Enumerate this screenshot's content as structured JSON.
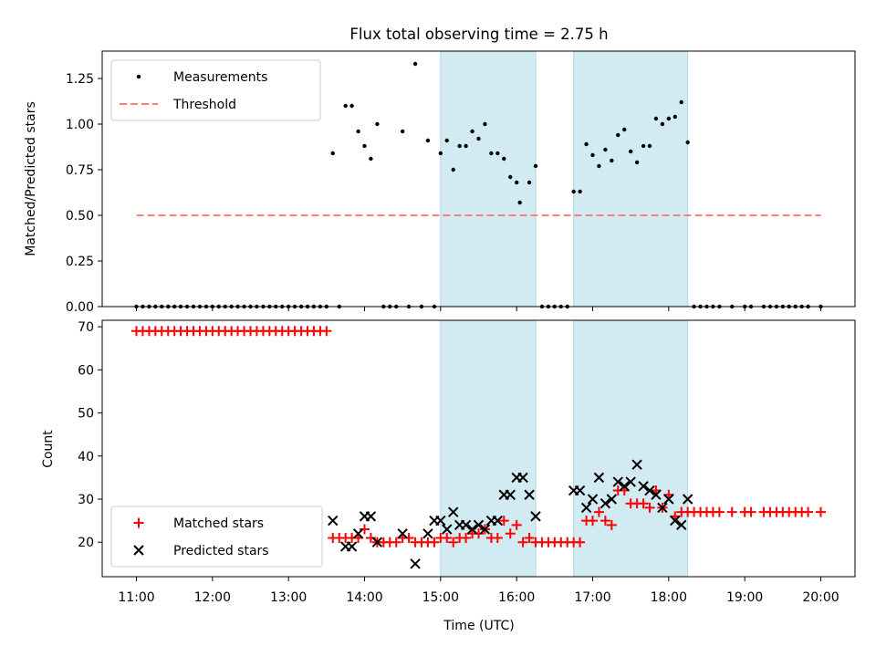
{
  "title": "Flux total observing time = 2.75 h",
  "colors": {
    "measurement": "#000000",
    "threshold": "#ff7f7f",
    "matched": "#ff0000",
    "predicted": "#000000",
    "band": "#add8e6"
  },
  "chart_data": [
    {
      "type": "scatter",
      "ylabel": "Matched/Predicted stars",
      "ylim": [
        0,
        1.4
      ],
      "yticks": [
        0,
        0.25,
        0.5,
        0.75,
        1.0,
        1.25
      ],
      "ytick_labels": [
        "0.00",
        "0.25",
        "0.50",
        "0.75",
        "1.00",
        "1.25"
      ],
      "xlim": [
        10.55,
        20.45
      ],
      "grid": false,
      "legend": {
        "placement": "top-left",
        "entries": [
          "Measurements",
          "Threshold"
        ]
      },
      "threshold": {
        "name": "Threshold",
        "value": 0.5,
        "x_range": [
          11.0,
          20.0
        ]
      },
      "shaded_intervals": [
        [
          15.0,
          16.25
        ],
        [
          16.75,
          18.25
        ]
      ],
      "series": [
        {
          "name": "Measurements",
          "points": [
            [
              11.0,
              0
            ],
            [
              11.083,
              0
            ],
            [
              11.167,
              0
            ],
            [
              11.25,
              0
            ],
            [
              11.333,
              0
            ],
            [
              11.417,
              0
            ],
            [
              11.5,
              0
            ],
            [
              11.583,
              0
            ],
            [
              11.667,
              0
            ],
            [
              11.75,
              0
            ],
            [
              11.833,
              0
            ],
            [
              11.917,
              0
            ],
            [
              12.0,
              0
            ],
            [
              12.083,
              0
            ],
            [
              12.167,
              0
            ],
            [
              12.25,
              0
            ],
            [
              12.333,
              0
            ],
            [
              12.417,
              0
            ],
            [
              12.5,
              0
            ],
            [
              12.583,
              0
            ],
            [
              12.667,
              0
            ],
            [
              12.75,
              0
            ],
            [
              12.833,
              0
            ],
            [
              12.917,
              0
            ],
            [
              13.0,
              0
            ],
            [
              13.083,
              0
            ],
            [
              13.167,
              0
            ],
            [
              13.25,
              0
            ],
            [
              13.333,
              0
            ],
            [
              13.417,
              0
            ],
            [
              13.5,
              0
            ],
            [
              13.583,
              0.84
            ],
            [
              13.667,
              0
            ],
            [
              13.75,
              1.1
            ],
            [
              13.833,
              1.1
            ],
            [
              13.917,
              0.96
            ],
            [
              14.0,
              0.88
            ],
            [
              14.083,
              0.81
            ],
            [
              14.167,
              1.0
            ],
            [
              14.25,
              0
            ],
            [
              14.333,
              0
            ],
            [
              14.417,
              0
            ],
            [
              14.5,
              0.96
            ],
            [
              14.583,
              0
            ],
            [
              14.667,
              1.33
            ],
            [
              14.75,
              0
            ],
            [
              14.833,
              0.91
            ],
            [
              14.917,
              0
            ],
            [
              15.0,
              0.84
            ],
            [
              15.083,
              0.91
            ],
            [
              15.167,
              0.75
            ],
            [
              15.25,
              0.88
            ],
            [
              15.333,
              0.88
            ],
            [
              15.417,
              0.96
            ],
            [
              15.5,
              0.92
            ],
            [
              15.583,
              1.0
            ],
            [
              15.667,
              0.84
            ],
            [
              15.75,
              0.84
            ],
            [
              15.833,
              0.81
            ],
            [
              15.917,
              0.71
            ],
            [
              16.0,
              0.68
            ],
            [
              16.042,
              0.57
            ],
            [
              16.167,
              0.68
            ],
            [
              16.25,
              0.77
            ],
            [
              16.333,
              0
            ],
            [
              16.417,
              0
            ],
            [
              16.5,
              0
            ],
            [
              16.583,
              0
            ],
            [
              16.667,
              0
            ],
            [
              16.75,
              0.63
            ],
            [
              16.833,
              0.63
            ],
            [
              16.917,
              0.89
            ],
            [
              17.0,
              0.83
            ],
            [
              17.083,
              0.77
            ],
            [
              17.167,
              0.86
            ],
            [
              17.25,
              0.8
            ],
            [
              17.333,
              0.94
            ],
            [
              17.417,
              0.97
            ],
            [
              17.5,
              0.85
            ],
            [
              17.583,
              0.79
            ],
            [
              17.667,
              0.88
            ],
            [
              17.75,
              0.88
            ],
            [
              17.833,
              1.03
            ],
            [
              17.917,
              1.0
            ],
            [
              18.0,
              1.03
            ],
            [
              18.083,
              1.04
            ],
            [
              18.167,
              1.12
            ],
            [
              18.25,
              0.9
            ],
            [
              18.333,
              0
            ],
            [
              18.417,
              0
            ],
            [
              18.5,
              0
            ],
            [
              18.583,
              0
            ],
            [
              18.667,
              0
            ],
            [
              18.833,
              0
            ],
            [
              19.0,
              0
            ],
            [
              19.083,
              0
            ],
            [
              19.25,
              0
            ],
            [
              19.333,
              0
            ],
            [
              19.417,
              0
            ],
            [
              19.5,
              0
            ],
            [
              19.583,
              0
            ],
            [
              19.667,
              0
            ],
            [
              19.75,
              0
            ],
            [
              19.833,
              0
            ],
            [
              20.0,
              0
            ]
          ]
        }
      ]
    },
    {
      "type": "scatter",
      "xlabel": "Time (UTC)",
      "ylabel": "Count",
      "ylim": [
        12.0,
        71.5
      ],
      "yticks": [
        20,
        30,
        40,
        50,
        60,
        70
      ],
      "ytick_labels": [
        "20",
        "30",
        "40",
        "50",
        "60",
        "70"
      ],
      "xlim": [
        10.55,
        20.45
      ],
      "xticks": [
        11,
        12,
        13,
        14,
        15,
        16,
        17,
        18,
        19,
        20
      ],
      "xtick_labels": [
        "11:00",
        "12:00",
        "13:00",
        "14:00",
        "15:00",
        "16:00",
        "17:00",
        "18:00",
        "19:00",
        "20:00"
      ],
      "grid": false,
      "legend": {
        "placement": "bottom-left",
        "entries": [
          "Matched stars",
          "Predicted stars"
        ]
      },
      "shaded_intervals": [
        [
          15.0,
          16.25
        ],
        [
          16.75,
          18.25
        ]
      ],
      "series": [
        {
          "name": "Matched stars",
          "marker": "plus",
          "points": [
            [
              11.0,
              69
            ],
            [
              11.083,
              69
            ],
            [
              11.167,
              69
            ],
            [
              11.25,
              69
            ],
            [
              11.333,
              69
            ],
            [
              11.417,
              69
            ],
            [
              11.5,
              69
            ],
            [
              11.583,
              69
            ],
            [
              11.667,
              69
            ],
            [
              11.75,
              69
            ],
            [
              11.833,
              69
            ],
            [
              11.917,
              69
            ],
            [
              12.0,
              69
            ],
            [
              12.083,
              69
            ],
            [
              12.167,
              69
            ],
            [
              12.25,
              69
            ],
            [
              12.333,
              69
            ],
            [
              12.417,
              69
            ],
            [
              12.5,
              69
            ],
            [
              12.583,
              69
            ],
            [
              12.667,
              69
            ],
            [
              12.75,
              69
            ],
            [
              12.833,
              69
            ],
            [
              12.917,
              69
            ],
            [
              13.0,
              69
            ],
            [
              13.083,
              69
            ],
            [
              13.167,
              69
            ],
            [
              13.25,
              69
            ],
            [
              13.333,
              69
            ],
            [
              13.417,
              69
            ],
            [
              13.5,
              69
            ],
            [
              13.583,
              21
            ],
            [
              13.667,
              21
            ],
            [
              13.75,
              21
            ],
            [
              13.833,
              21
            ],
            [
              13.917,
              21
            ],
            [
              14.0,
              23
            ],
            [
              14.083,
              21
            ],
            [
              14.167,
              20
            ],
            [
              14.25,
              20
            ],
            [
              14.333,
              20
            ],
            [
              14.417,
              20
            ],
            [
              14.5,
              21
            ],
            [
              14.583,
              21
            ],
            [
              14.667,
              20
            ],
            [
              14.75,
              20
            ],
            [
              14.833,
              20
            ],
            [
              14.917,
              20
            ],
            [
              15.0,
              21
            ],
            [
              15.083,
              21
            ],
            [
              15.167,
              20
            ],
            [
              15.25,
              21
            ],
            [
              15.333,
              21
            ],
            [
              15.417,
              22
            ],
            [
              15.5,
              22
            ],
            [
              15.583,
              23
            ],
            [
              15.667,
              21
            ],
            [
              15.75,
              21
            ],
            [
              15.833,
              25
            ],
            [
              15.917,
              22
            ],
            [
              16.0,
              24
            ],
            [
              16.083,
              20
            ],
            [
              16.167,
              21
            ],
            [
              16.25,
              20
            ],
            [
              16.333,
              20
            ],
            [
              16.417,
              20
            ],
            [
              16.5,
              20
            ],
            [
              16.583,
              20
            ],
            [
              16.667,
              20
            ],
            [
              16.75,
              20
            ],
            [
              16.833,
              20
            ],
            [
              16.917,
              25
            ],
            [
              17.0,
              25
            ],
            [
              17.083,
              27
            ],
            [
              17.167,
              25
            ],
            [
              17.25,
              24
            ],
            [
              17.333,
              32
            ],
            [
              17.417,
              32
            ],
            [
              17.5,
              29
            ],
            [
              17.583,
              29
            ],
            [
              17.667,
              29
            ],
            [
              17.75,
              28
            ],
            [
              17.833,
              32
            ],
            [
              17.917,
              28
            ],
            [
              18.0,
              31
            ],
            [
              18.083,
              26
            ],
            [
              18.167,
              27
            ],
            [
              18.25,
              27
            ],
            [
              18.333,
              27
            ],
            [
              18.417,
              27
            ],
            [
              18.5,
              27
            ],
            [
              18.583,
              27
            ],
            [
              18.667,
              27
            ],
            [
              18.833,
              27
            ],
            [
              19.0,
              27
            ],
            [
              19.083,
              27
            ],
            [
              19.25,
              27
            ],
            [
              19.333,
              27
            ],
            [
              19.417,
              27
            ],
            [
              19.5,
              27
            ],
            [
              19.583,
              27
            ],
            [
              19.667,
              27
            ],
            [
              19.75,
              27
            ],
            [
              19.833,
              27
            ],
            [
              20.0,
              27
            ]
          ]
        },
        {
          "name": "Predicted stars",
          "marker": "x",
          "points": [
            [
              13.583,
              25
            ],
            [
              13.75,
              19
            ],
            [
              13.833,
              19
            ],
            [
              13.917,
              22
            ],
            [
              14.0,
              26
            ],
            [
              14.083,
              26
            ],
            [
              14.167,
              20
            ],
            [
              14.5,
              22
            ],
            [
              14.667,
              15
            ],
            [
              14.833,
              22
            ],
            [
              14.917,
              25
            ],
            [
              15.0,
              25
            ],
            [
              15.083,
              23
            ],
            [
              15.167,
              27
            ],
            [
              15.25,
              24
            ],
            [
              15.333,
              24
            ],
            [
              15.417,
              23
            ],
            [
              15.5,
              24
            ],
            [
              15.583,
              23
            ],
            [
              15.667,
              25
            ],
            [
              15.75,
              25
            ],
            [
              15.833,
              31
            ],
            [
              15.917,
              31
            ],
            [
              16.0,
              35
            ],
            [
              16.083,
              35
            ],
            [
              16.167,
              31
            ],
            [
              16.25,
              26
            ],
            [
              16.75,
              32
            ],
            [
              16.833,
              32
            ],
            [
              16.917,
              28
            ],
            [
              17.0,
              30
            ],
            [
              17.083,
              35
            ],
            [
              17.167,
              29
            ],
            [
              17.25,
              30
            ],
            [
              17.333,
              34
            ],
            [
              17.417,
              33
            ],
            [
              17.5,
              34
            ],
            [
              17.583,
              38
            ],
            [
              17.667,
              33
            ],
            [
              17.75,
              32
            ],
            [
              17.833,
              31
            ],
            [
              17.917,
              28
            ],
            [
              18.0,
              30
            ],
            [
              18.083,
              25
            ],
            [
              18.167,
              24
            ],
            [
              18.25,
              30
            ]
          ]
        }
      ]
    }
  ]
}
